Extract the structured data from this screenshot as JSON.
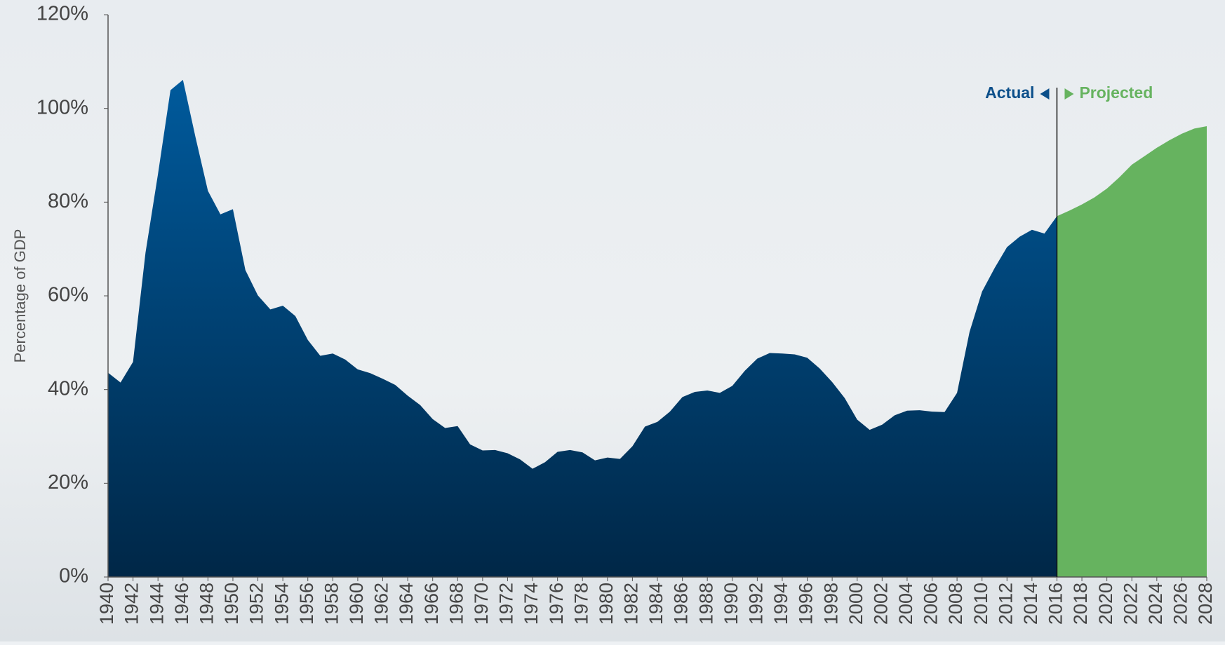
{
  "chart_data": {
    "type": "area",
    "y_label": "Percentage of GDP",
    "xlim": [
      1940,
      2028
    ],
    "xticks": [
      1940,
      1942,
      1944,
      1946,
      1948,
      1950,
      1952,
      1954,
      1956,
      1958,
      1960,
      1962,
      1964,
      1966,
      1968,
      1970,
      1972,
      1974,
      1976,
      1978,
      1980,
      1982,
      1984,
      1986,
      1988,
      1990,
      1992,
      1994,
      1996,
      1998,
      2000,
      2002,
      2004,
      2006,
      2008,
      2010,
      2012,
      2014,
      2016,
      2018,
      2020,
      2022,
      2024,
      2026,
      2028
    ],
    "ylim": [
      0,
      120
    ],
    "yticks": [
      {
        "value": 0,
        "label": "0%"
      },
      {
        "value": 20,
        "label": "20%"
      },
      {
        "value": 40,
        "label": "40%"
      },
      {
        "value": 60,
        "label": "60%"
      },
      {
        "value": 80,
        "label": "80%"
      },
      {
        "value": 100,
        "label": "100%"
      },
      {
        "value": 120,
        "label": "120%"
      }
    ],
    "divider_x": 2016,
    "series": [
      {
        "name": "Actual",
        "color": "#0b4f8a",
        "x": [
          1940,
          1941,
          1942,
          1943,
          1944,
          1945,
          1946,
          1947,
          1948,
          1949,
          1950,
          1951,
          1952,
          1953,
          1954,
          1955,
          1956,
          1957,
          1958,
          1959,
          1960,
          1961,
          1962,
          1963,
          1964,
          1965,
          1966,
          1967,
          1968,
          1969,
          1970,
          1971,
          1972,
          1973,
          1974,
          1975,
          1976,
          1977,
          1978,
          1979,
          1980,
          1981,
          1982,
          1983,
          1984,
          1985,
          1986,
          1987,
          1988,
          1989,
          1990,
          1991,
          1992,
          1993,
          1994,
          1995,
          1996,
          1997,
          1998,
          1999,
          2000,
          2001,
          2002,
          2003,
          2004,
          2005,
          2006,
          2007,
          2008,
          2009,
          2010,
          2011,
          2012,
          2013,
          2014,
          2015,
          2016
        ],
        "values": [
          43.6,
          41.5,
          45.9,
          69.2,
          86.0,
          103.9,
          106.1,
          93.9,
          82.4,
          77.4,
          78.5,
          65.5,
          60.1,
          57.1,
          57.9,
          55.7,
          50.6,
          47.2,
          47.7,
          46.4,
          44.3,
          43.5,
          42.3,
          41.0,
          38.7,
          36.7,
          33.7,
          31.8,
          32.2,
          28.3,
          27.0,
          27.1,
          26.4,
          25.1,
          23.1,
          24.5,
          26.7,
          27.1,
          26.6,
          24.9,
          25.5,
          25.2,
          27.9,
          32.1,
          33.1,
          35.3,
          38.4,
          39.5,
          39.8,
          39.3,
          40.8,
          44.0,
          46.6,
          47.8,
          47.7,
          47.5,
          46.8,
          44.5,
          41.6,
          38.2,
          33.6,
          31.4,
          32.5,
          34.5,
          35.5,
          35.6,
          35.3,
          35.2,
          39.3,
          52.3,
          60.9,
          65.9,
          70.4,
          72.6,
          74.1,
          73.3,
          77.0
        ]
      },
      {
        "name": "Projected",
        "color": "#66b35f",
        "x": [
          2016,
          2017,
          2018,
          2019,
          2020,
          2021,
          2022,
          2023,
          2024,
          2025,
          2026,
          2027,
          2028
        ],
        "values": [
          77.0,
          78.2,
          79.5,
          81.0,
          82.9,
          85.3,
          88.0,
          89.8,
          91.6,
          93.2,
          94.6,
          95.7,
          96.2
        ]
      }
    ]
  }
}
